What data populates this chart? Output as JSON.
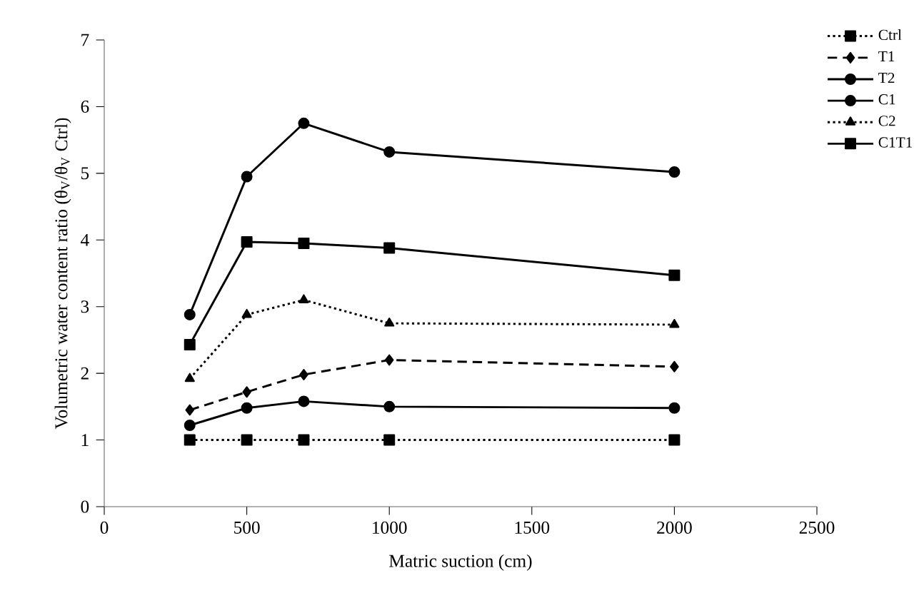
{
  "chart_data": {
    "type": "line",
    "xlabel": "Matric suction (cm)",
    "ylabel": "Volumetric water content ratio (θ$_{V}$/θ$_{V}$ Ctrl)",
    "x": [
      300,
      500,
      700,
      1000,
      2000
    ],
    "xlim": [
      0,
      2500
    ],
    "xticks": [
      0,
      500,
      1000,
      1500,
      2000,
      2500
    ],
    "ylim": [
      0,
      7
    ],
    "yticks": [
      0,
      1,
      2,
      3,
      4,
      5,
      6,
      7
    ],
    "grid": false,
    "legend": "top right",
    "series": [
      {
        "name": "Ctrl",
        "color": "#000000",
        "marker": "square",
        "line_style": "dotted",
        "values": [
          1,
          1,
          1,
          1,
          1
        ]
      },
      {
        "name": "T1",
        "color": "#000000",
        "marker": "diamond",
        "line_style": "dashed",
        "values": [
          1.45,
          1.72,
          1.98,
          2.2,
          2.1
        ]
      },
      {
        "name": "T2",
        "color": "#000000",
        "marker": "circle",
        "line_style": "solid",
        "values": [
          2.88,
          4.95,
          5.75,
          5.32,
          5.02
        ]
      },
      {
        "name": "C1",
        "color": "#000000",
        "marker": "circle",
        "line_style": "solid",
        "values": [
          1.22,
          1.48,
          1.58,
          1.5,
          1.48
        ]
      },
      {
        "name": "C2",
        "color": "#000000",
        "marker": "triangle",
        "line_style": "dotted",
        "values": [
          1.92,
          2.88,
          3.1,
          2.75,
          2.73
        ]
      },
      {
        "name": "C1T1",
        "color": "#000000",
        "marker": "square",
        "line_style": "solid",
        "values": [
          2.43,
          3.97,
          3.95,
          3.88,
          3.47
        ]
      }
    ]
  }
}
